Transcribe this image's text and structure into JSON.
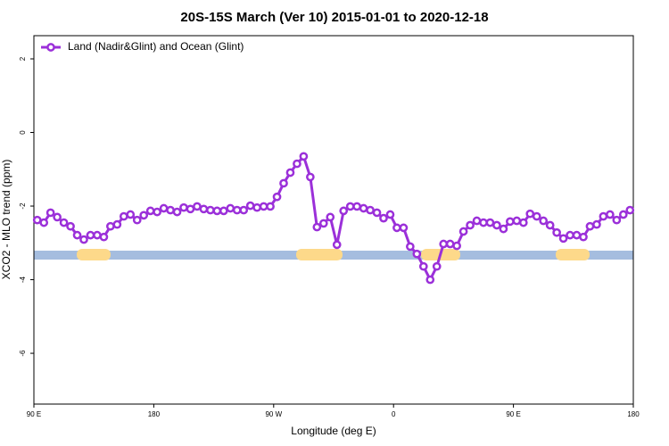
{
  "chart_data": {
    "type": "line",
    "title": "20S-15S March (Ver 10)   2015-01-01 to 2020-12-18",
    "xlabel": "Longitude (deg E)",
    "ylabel": "XCO2 - MLO trend (ppm)",
    "x": [
      92.5,
      97.5,
      102.5,
      107.5,
      112.5,
      117.5,
      122.5,
      127.5,
      132.5,
      137.5,
      142.5,
      147.5,
      152.5,
      157.5,
      162.5,
      167.5,
      172.5,
      177.5,
      182.5,
      187.5,
      192.5,
      197.5,
      202.5,
      207.5,
      212.5,
      217.5,
      222.5,
      227.5,
      232.5,
      237.5,
      242.5,
      247.5,
      252.5,
      257.5,
      262.5,
      267.5,
      272.5,
      277.5,
      282.5,
      287.5,
      292.5,
      297.5,
      302.5,
      307.5,
      312.5,
      317.5,
      322.5,
      327.5,
      332.5,
      337.5,
      342.5,
      347.5,
      352.5,
      357.5,
      362.5,
      367.5,
      372.5,
      377.5,
      382.5,
      387.5,
      392.5,
      397.5,
      402.5,
      407.5,
      412.5,
      417.5,
      422.5,
      427.5,
      432.5,
      437.5,
      442.5,
      447.5,
      452.5,
      457.5,
      462.5,
      467.5,
      472.5,
      477.5,
      482.5,
      487.5,
      492.5,
      497.5,
      502.5,
      507.5,
      512.5,
      517.5,
      522.5,
      527.5,
      532.5,
      537.5
    ],
    "series": [
      {
        "name": "Land (Nadir&Glint) and Ocean (Glint)",
        "color": "#9b30d9",
        "values": [
          -2.38,
          -2.45,
          -2.18,
          -2.3,
          -2.45,
          -2.55,
          -2.79,
          -2.91,
          -2.79,
          -2.79,
          -2.84,
          -2.55,
          -2.5,
          -2.28,
          -2.23,
          -2.38,
          -2.25,
          -2.13,
          -2.16,
          -2.06,
          -2.11,
          -2.16,
          -2.04,
          -2.08,
          -2.01,
          -2.08,
          -2.11,
          -2.13,
          -2.13,
          -2.06,
          -2.11,
          -2.11,
          -1.99,
          -2.04,
          -2.01,
          -2.01,
          -1.75,
          -1.38,
          -1.09,
          -0.85,
          -0.65,
          -1.21,
          -2.57,
          -2.47,
          -2.3,
          -3.05,
          -2.13,
          -2.01,
          -2.01,
          -2.06,
          -2.11,
          -2.18,
          -2.33,
          -2.23,
          -2.59,
          -2.59,
          -3.1,
          -3.3,
          -3.64,
          -4.0,
          -3.64,
          -3.03,
          -3.03,
          -3.08,
          -2.69,
          -2.52,
          -2.4,
          -2.45,
          -2.45,
          -2.52,
          -2.62,
          -2.42,
          -2.4,
          -2.45,
          -2.21,
          -2.28,
          -2.4,
          -2.52,
          -2.72,
          -2.88,
          -2.79,
          -2.79,
          -2.84,
          -2.55,
          -2.5,
          -2.28,
          -2.23,
          -2.38,
          -2.23,
          -2.11
        ]
      }
    ],
    "xlim": [
      90,
      540
    ],
    "xticks": [
      {
        "value": 90,
        "label": "90 E"
      },
      180,
      {
        "value": 270,
        "label": "90 W"
      },
      {
        "value": 360,
        "label": "0"
      },
      {
        "value": 450,
        "label": "90 E"
      },
      {
        "value": 540,
        "label": "180"
      }
    ],
    "ylim": [
      -7.38,
      2.63
    ],
    "yticks": [
      2,
      0,
      -2,
      -4,
      -6
    ],
    "legend": "top-left"
  }
}
